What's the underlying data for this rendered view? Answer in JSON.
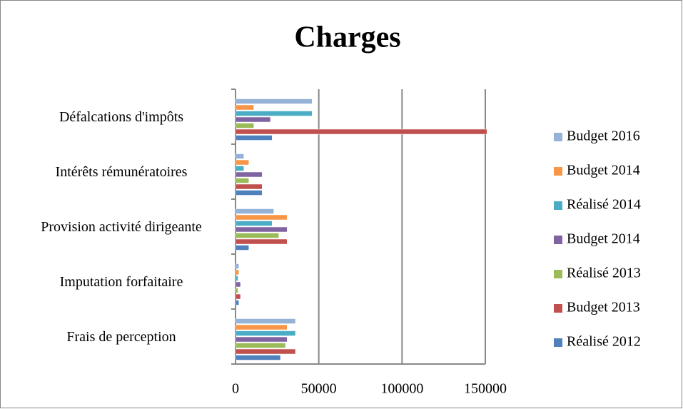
{
  "chart_data": {
    "type": "bar",
    "orientation": "horizontal",
    "title": "Charges",
    "categories": [
      "Frais de perception",
      "Imputation forfaitaire",
      "Provision activité dirigeante",
      "Intérêts rémunératoires",
      "Défalcations d'impôts"
    ],
    "series": [
      {
        "name": "Réalisé 2012",
        "color": "#4f81bd",
        "values": [
          27000,
          2000,
          8000,
          16000,
          22000
        ]
      },
      {
        "name": "Budget 2013",
        "color": "#c0504d",
        "values": [
          36000,
          3000,
          31000,
          16000,
          151000
        ]
      },
      {
        "name": "Réalisé 2013",
        "color": "#9bbb59",
        "values": [
          30000,
          1500,
          26000,
          8000,
          11000
        ]
      },
      {
        "name": "Budget 2014",
        "color": "#8064a2",
        "values": [
          31000,
          3000,
          31000,
          16000,
          21000
        ]
      },
      {
        "name": "Réalisé 2014",
        "color": "#4bacc6",
        "values": [
          36000,
          1500,
          22000,
          5000,
          46000
        ]
      },
      {
        "name": "Budget 2014",
        "color": "#f79646",
        "values": [
          31000,
          2000,
          31000,
          8000,
          11000
        ]
      },
      {
        "name": "Budget 2016",
        "color": "#95b3d7",
        "values": [
          36000,
          2000,
          23000,
          5000,
          46000
        ]
      }
    ],
    "xlim": [
      0,
      150000
    ],
    "xticks": [
      0,
      50000,
      100000,
      150000
    ],
    "grid": true,
    "legend": "right"
  }
}
